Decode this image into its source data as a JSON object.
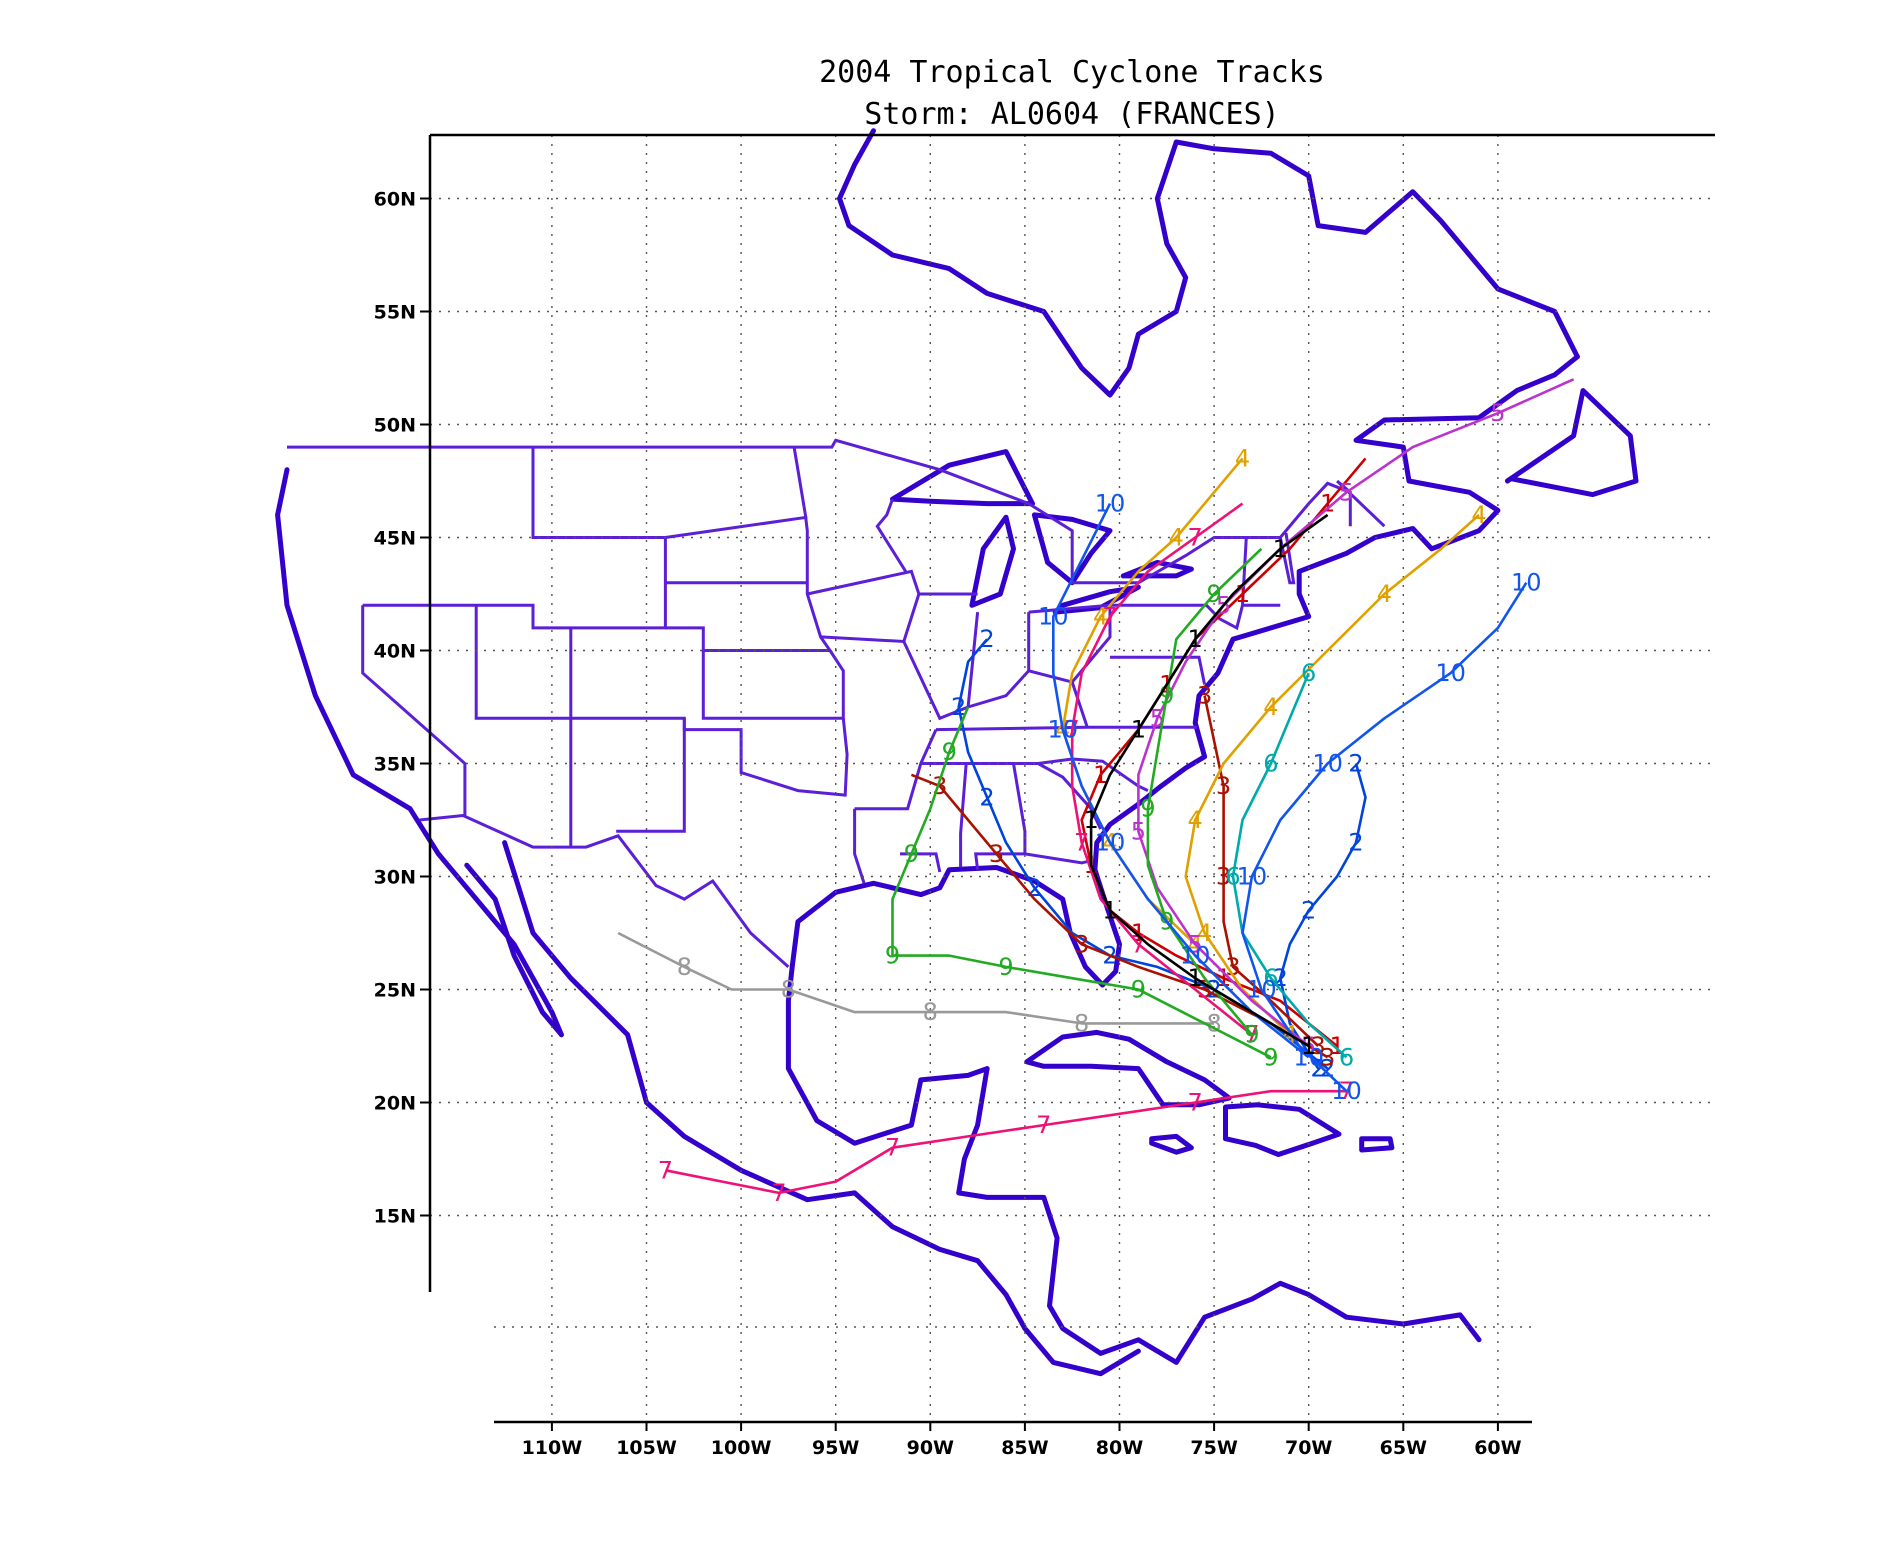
{
  "title": {
    "line1": "2004 Tropical Cyclone Tracks",
    "line2": "Storm: AL0604 (FRANCES)"
  },
  "map": {
    "projection": "lat-lon",
    "lon_range": [
      -114,
      -57
    ],
    "lat_range": [
      11,
      63
    ],
    "lon_ticks": [
      "110W",
      "105W",
      "100W",
      "95W",
      "90W",
      "85W",
      "80W",
      "75W",
      "70W",
      "65W",
      "60W"
    ],
    "lat_ticks": [
      "60N",
      "55N",
      "50N",
      "45N",
      "40N",
      "35N",
      "30N",
      "25N",
      "20N",
      "15N"
    ],
    "grid": true,
    "colors": {
      "coastline": "#3300cc",
      "political_borders": "#5a1fd6",
      "grid": "#555555"
    }
  },
  "chart_data": {
    "type": "line",
    "title": "2004 Tropical Cyclone Tracks",
    "subtitle": "Storm: AL0604 (FRANCES)",
    "xlabel": "",
    "ylabel": "",
    "xlim": [
      -114,
      -57
    ],
    "ylim": [
      11,
      63
    ],
    "grid": true,
    "series": [
      {
        "label": "1",
        "color": "#cc0000",
        "points": [
          [
            -68.5,
            22.5
          ],
          [
            -71.5,
            24.5
          ],
          [
            -74.5,
            25.5
          ],
          [
            -77,
            26.5
          ],
          [
            -79,
            27.5
          ],
          [
            -80.5,
            28.5
          ],
          [
            -81.5,
            30.5
          ],
          [
            -82,
            32.5
          ],
          [
            -81,
            34.5
          ],
          [
            -79,
            36.5
          ],
          [
            -77.5,
            38.5
          ],
          [
            -76,
            40.5
          ],
          [
            -73.5,
            42.5
          ],
          [
            -71,
            44.5
          ],
          [
            -69,
            46.5
          ],
          [
            -67,
            48.5
          ]
        ]
      },
      {
        "label": "2",
        "color": "#0044dd",
        "points": [
          [
            -69,
            21.5
          ],
          [
            -72,
            23.5
          ],
          [
            -75,
            25
          ],
          [
            -78,
            26
          ],
          [
            -80.5,
            26.5
          ],
          [
            -82.5,
            27.5
          ],
          [
            -84.5,
            29.5
          ],
          [
            -86,
            31.5
          ],
          [
            -87,
            33.5
          ],
          [
            -88,
            35.5
          ],
          [
            -88.5,
            37.5
          ],
          [
            -88,
            39.5
          ],
          [
            -87,
            40.5
          ]
        ]
      },
      {
        "label": "2",
        "color": "#0044dd",
        "points": [
          [
            -69.5,
            21.5
          ],
          [
            -71,
            23.5
          ],
          [
            -71.5,
            25.5
          ],
          [
            -71,
            27
          ],
          [
            -70,
            28.5
          ],
          [
            -68.5,
            30
          ],
          [
            -67.5,
            31.5
          ],
          [
            -67,
            33.5
          ],
          [
            -67.5,
            35
          ]
        ]
      },
      {
        "label": "3",
        "color": "#aa1100",
        "points": [
          [
            -69,
            22
          ],
          [
            -72,
            23.5
          ],
          [
            -75.5,
            25
          ],
          [
            -79,
            26
          ],
          [
            -82,
            27
          ],
          [
            -84.5,
            29
          ],
          [
            -86.5,
            31
          ],
          [
            -88,
            32.5
          ],
          [
            -89.5,
            34
          ],
          [
            -91,
            34.5
          ]
        ]
      },
      {
        "label": "3",
        "color": "#aa1100",
        "points": [
          [
            -69.5,
            22.5
          ],
          [
            -72,
            24.5
          ],
          [
            -74,
            26
          ],
          [
            -74.5,
            28
          ],
          [
            -74.5,
            30
          ],
          [
            -74.5,
            32
          ],
          [
            -74.5,
            34
          ],
          [
            -75,
            36
          ],
          [
            -75.5,
            38
          ]
        ]
      },
      {
        "label": "4",
        "color": "#e0a000",
        "points": [
          [
            -71,
            23
          ],
          [
            -73.5,
            25
          ],
          [
            -75.5,
            27.5
          ],
          [
            -76.5,
            30
          ],
          [
            -76,
            32.5
          ],
          [
            -74.5,
            35
          ],
          [
            -72,
            37.5
          ],
          [
            -69,
            40
          ],
          [
            -66,
            42.5
          ],
          [
            -63,
            44.5
          ],
          [
            -61,
            46
          ]
        ]
      },
      {
        "label": "4",
        "color": "#e0a000",
        "points": [
          [
            -76,
            27
          ],
          [
            -78.5,
            29
          ],
          [
            -80.5,
            31.5
          ],
          [
            -82,
            34
          ],
          [
            -83,
            36.5
          ],
          [
            -82.5,
            39
          ],
          [
            -81,
            41.5
          ],
          [
            -79,
            43.5
          ],
          [
            -77,
            45
          ],
          [
            -75,
            47
          ],
          [
            -73.5,
            48.5
          ]
        ]
      },
      {
        "label": "5",
        "color": "#bb33cc",
        "points": [
          [
            -70,
            22.5
          ],
          [
            -73,
            24.5
          ],
          [
            -76,
            27
          ],
          [
            -78,
            29.5
          ],
          [
            -79,
            32
          ],
          [
            -79,
            34.5
          ],
          [
            -78,
            37
          ],
          [
            -76.5,
            39.5
          ],
          [
            -74.5,
            42
          ],
          [
            -71.5,
            44.5
          ],
          [
            -68,
            47
          ],
          [
            -64.5,
            49
          ],
          [
            -60,
            50.5
          ],
          [
            -56,
            52
          ]
        ]
      },
      {
        "label": "6",
        "color": "#00aaaa",
        "points": [
          [
            -68,
            22
          ],
          [
            -70,
            23.5
          ],
          [
            -72,
            25.5
          ],
          [
            -73.5,
            27.5
          ],
          [
            -74,
            30
          ],
          [
            -73.5,
            32.5
          ],
          [
            -72,
            35
          ],
          [
            -71,
            37
          ],
          [
            -70,
            39
          ]
        ]
      },
      {
        "label": "7",
        "color": "#ee1177",
        "points": [
          [
            -68,
            20.5
          ],
          [
            -72,
            20.5
          ],
          [
            -76,
            20
          ],
          [
            -80,
            19.5
          ],
          [
            -84,
            19
          ],
          [
            -88,
            18.5
          ],
          [
            -92,
            18
          ],
          [
            -95,
            16.5
          ],
          [
            -98,
            16
          ],
          [
            -101,
            16.5
          ],
          [
            -104,
            17
          ]
        ]
      },
      {
        "label": "7",
        "color": "#ee1177",
        "points": [
          [
            -73,
            23
          ],
          [
            -76,
            25
          ],
          [
            -79,
            27
          ],
          [
            -81,
            29
          ],
          [
            -82,
            31.5
          ],
          [
            -82.5,
            34
          ],
          [
            -82.5,
            36.5
          ],
          [
            -82,
            39
          ],
          [
            -80.5,
            41.5
          ],
          [
            -78.5,
            43.5
          ],
          [
            -76,
            45
          ],
          [
            -73.5,
            46.5
          ]
        ]
      },
      {
        "label": "8",
        "color": "#999999",
        "points": [
          [
            -75,
            23.5
          ],
          [
            -78.5,
            23.5
          ],
          [
            -82,
            23.5
          ],
          [
            -86,
            24
          ],
          [
            -90,
            24
          ],
          [
            -94,
            24
          ],
          [
            -97.5,
            25
          ],
          [
            -100.5,
            25
          ],
          [
            -103,
            26
          ],
          [
            -106.5,
            27.5
          ]
        ]
      },
      {
        "label": "9",
        "color": "#22aa22",
        "points": [
          [
            -72,
            22
          ],
          [
            -75.5,
            23.5
          ],
          [
            -79,
            25
          ],
          [
            -82.5,
            25.5
          ],
          [
            -86,
            26
          ],
          [
            -89,
            26.5
          ],
          [
            -92,
            26.5
          ],
          [
            -92,
            29
          ],
          [
            -91,
            31
          ],
          [
            -90,
            33
          ],
          [
            -89,
            35.5
          ],
          [
            -88,
            37.5
          ]
        ]
      },
      {
        "label": "9",
        "color": "#22aa22",
        "points": [
          [
            -73,
            23
          ],
          [
            -75.5,
            25.5
          ],
          [
            -77.5,
            28
          ],
          [
            -78.5,
            30.5
          ],
          [
            -78.5,
            33
          ],
          [
            -78,
            35.5
          ],
          [
            -77.5,
            38
          ],
          [
            -77,
            40.5
          ],
          [
            -75,
            42.5
          ],
          [
            -72.5,
            44.5
          ]
        ]
      },
      {
        "label": "10",
        "color": "#1155ee",
        "points": [
          [
            -68,
            20.5
          ],
          [
            -70.5,
            22.5
          ],
          [
            -72.5,
            25
          ],
          [
            -73.5,
            27.5
          ],
          [
            -73,
            30
          ],
          [
            -71.5,
            32.5
          ],
          [
            -69,
            35
          ],
          [
            -66,
            37
          ],
          [
            -62.5,
            39
          ],
          [
            -60,
            41
          ],
          [
            -58.5,
            43
          ]
        ]
      },
      {
        "label": "10",
        "color": "#1155ee",
        "points": [
          [
            -70,
            22
          ],
          [
            -73,
            24
          ],
          [
            -76,
            26.5
          ],
          [
            -78.5,
            29
          ],
          [
            -80.5,
            31.5
          ],
          [
            -82,
            34
          ],
          [
            -83,
            36.5
          ],
          [
            -83.5,
            39
          ],
          [
            -83.5,
            41.5
          ],
          [
            -82,
            44
          ],
          [
            -80.5,
            46.5
          ]
        ]
      },
      {
        "label": "1",
        "color": "#000000",
        "points": [
          [
            -70,
            22.5
          ],
          [
            -73,
            24
          ],
          [
            -76,
            25.5
          ],
          [
            -78.5,
            27
          ],
          [
            -80.5,
            28.5
          ],
          [
            -81.5,
            30.5
          ],
          [
            -81.5,
            32.5
          ],
          [
            -80.5,
            34.5
          ],
          [
            -79,
            36.5
          ],
          [
            -77.5,
            38.5
          ],
          [
            -76,
            40.5
          ],
          [
            -74,
            42.5
          ],
          [
            -71.5,
            44.5
          ],
          [
            -69,
            46
          ]
        ]
      }
    ]
  }
}
